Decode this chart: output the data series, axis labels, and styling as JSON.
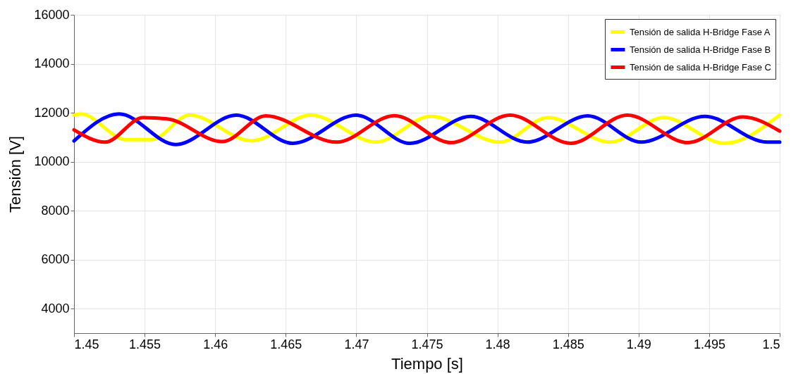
{
  "chart_data": {
    "type": "line",
    "xlabel": "Tiempo [s]",
    "ylabel": "Tensión [V]",
    "xlim": [
      1.45,
      1.5
    ],
    "xticks": [
      1.45,
      1.455,
      1.46,
      1.465,
      1.47,
      1.475,
      1.48,
      1.485,
      1.49,
      1.495,
      1.5
    ],
    "ylim": [
      3000,
      16000
    ],
    "yticks": [
      4000,
      6000,
      8000,
      10000,
      12000,
      14000,
      16000
    ],
    "grid": true,
    "legend": "top right",
    "line_style": "solid",
    "marker": "none",
    "series": [
      {
        "name": "Tensión de salida H-Bridge Fase A",
        "color": "#ffff00",
        "x": [
          1.45,
          1.4505,
          1.4537,
          1.4555,
          1.4582,
          1.4626,
          1.4668,
          1.4714,
          1.4753,
          1.4802,
          1.4836,
          1.488,
          1.4918,
          1.4961,
          1.5
        ],
        "values": [
          11900,
          11950,
          10900,
          10900,
          11900,
          10850,
          11900,
          10800,
          11850,
          10800,
          11800,
          10800,
          11800,
          10750,
          11900
        ]
      },
      {
        "name": "Tensión de salida H-Bridge Fase B",
        "color": "#0000ff",
        "x": [
          1.45,
          1.4532,
          1.4572,
          1.4615,
          1.4655,
          1.47,
          1.4738,
          1.4781,
          1.4821,
          1.4864,
          1.4902,
          1.4947,
          1.4991,
          1.5
        ],
        "values": [
          10850,
          11950,
          10700,
          11900,
          10750,
          11900,
          10750,
          11850,
          10800,
          11870,
          10800,
          11850,
          10800,
          10800
        ]
      },
      {
        "name": "Tensión de salida H-Bridge Fase C",
        "color": "#ff0000",
        "x": [
          1.45,
          1.4522,
          1.4549,
          1.4566,
          1.4605,
          1.4636,
          1.4686,
          1.4727,
          1.4767,
          1.4809,
          1.4852,
          1.4892,
          1.4935,
          1.4974,
          1.5
        ],
        "values": [
          11300,
          10800,
          11800,
          11750,
          10820,
          11870,
          10800,
          11880,
          10780,
          11900,
          10750,
          11900,
          10780,
          11830,
          11250
        ]
      }
    ]
  }
}
